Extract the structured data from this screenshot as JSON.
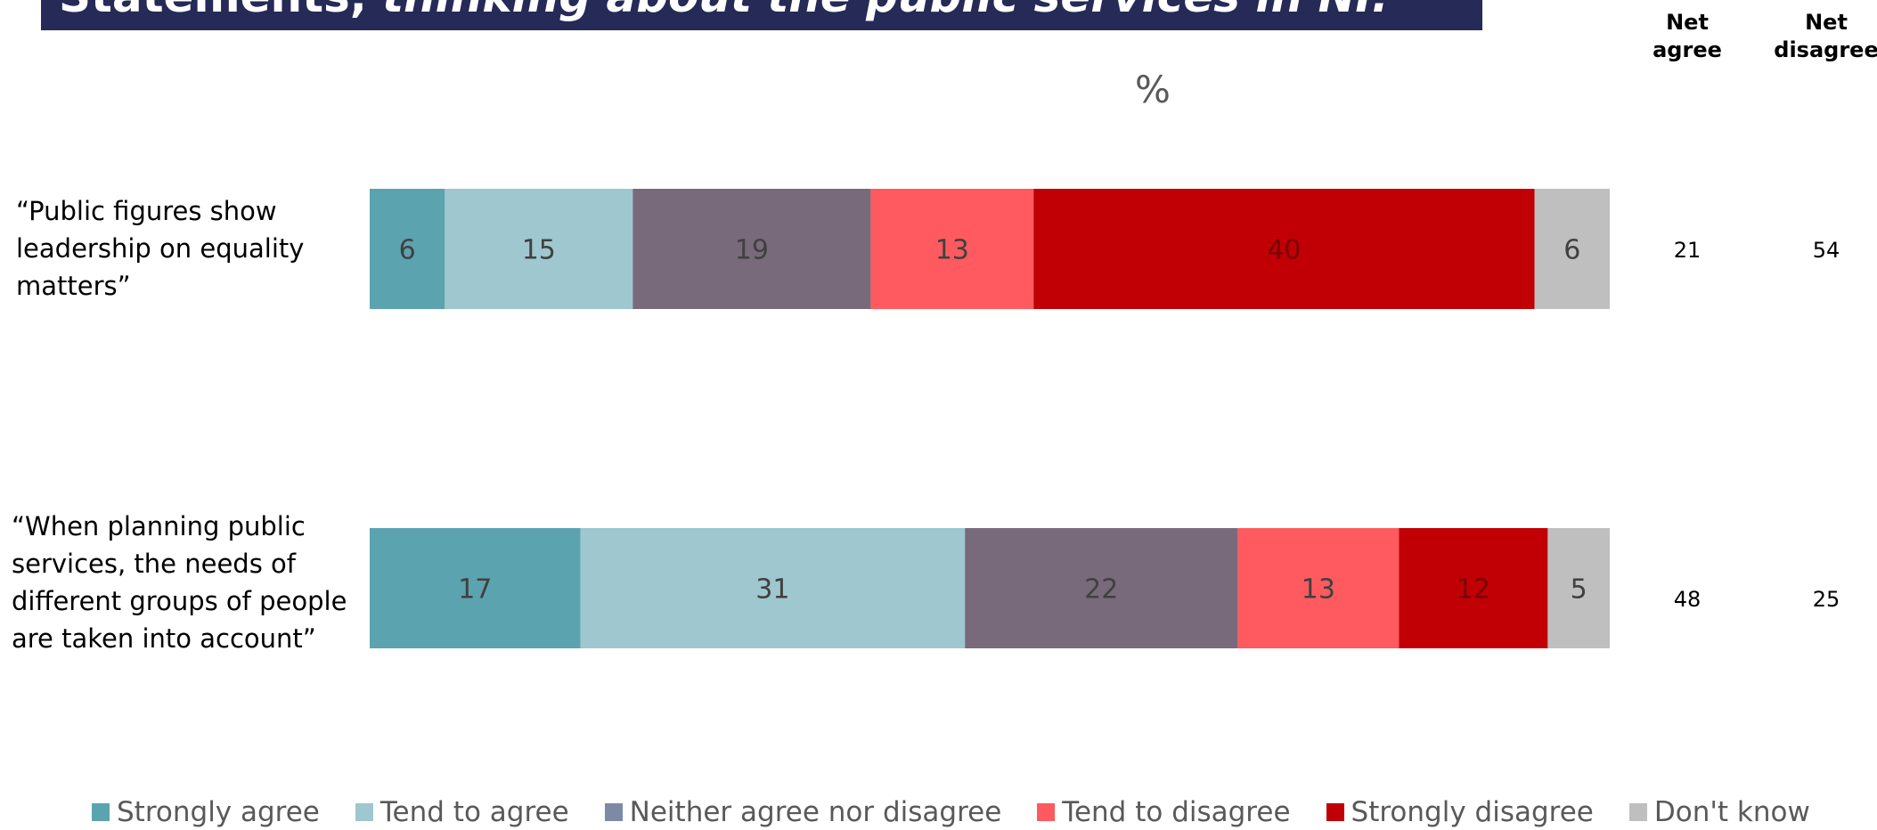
{
  "title": {
    "plain": "Statements, ",
    "italic": "thinking about the public services in NI:"
  },
  "columns": {
    "net_agree": "Net\nagree",
    "net_disagree": "Net\ndisagree"
  },
  "chart_data": {
    "type": "bar",
    "orientation": "horizontal",
    "stacked": true,
    "ylabel": "%",
    "categories": [
      "“Public figures show leadership on equality matters”",
      "“When planning public services, the needs of different groups of people are taken into account”"
    ],
    "series": [
      {
        "name": "Strongly agree",
        "color": "#5ba3ae",
        "values": [
          6,
          17
        ]
      },
      {
        "name": "Tend to agree",
        "color": "#9ec7cf",
        "values": [
          15,
          31
        ]
      },
      {
        "name": "Neither agree nor disagree",
        "color": "#786a7b",
        "legend_color": "#7c8aa5",
        "values": [
          19,
          22
        ]
      },
      {
        "name": "Tend to disagree",
        "color": "#ff5a5f",
        "values": [
          13,
          13
        ]
      },
      {
        "name": "Strongly disagree",
        "color": "#c00005",
        "values": [
          40,
          12
        ]
      },
      {
        "name": "Don't know",
        "color": "#bfbfbf",
        "values": [
          6,
          5
        ]
      }
    ],
    "net_agree": [
      21,
      48
    ],
    "net_disagree": [
      54,
      25
    ],
    "legend_position": "bottom",
    "grid": false
  }
}
